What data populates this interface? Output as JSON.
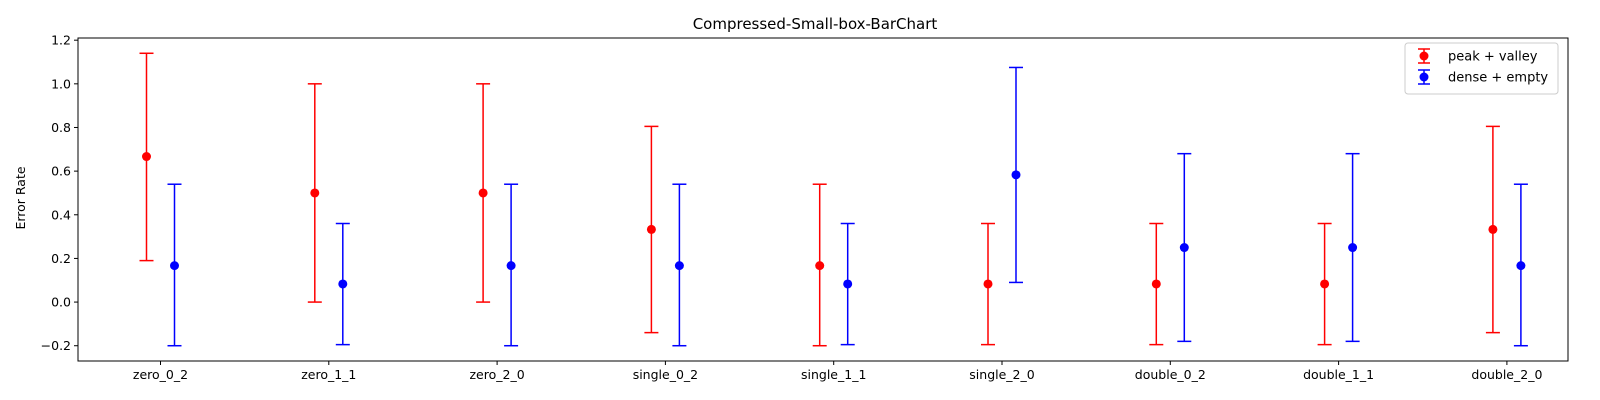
{
  "chart_data": {
    "type": "scatter",
    "title": "Compressed-Small-box-BarChart",
    "xlabel": "",
    "ylabel": "Error Rate",
    "categories": [
      "zero_0_2",
      "zero_1_1",
      "zero_2_0",
      "single_0_2",
      "single_1_1",
      "single_2_0",
      "double_0_2",
      "double_1_1",
      "double_2_0"
    ],
    "ylim": [
      -0.27,
      1.21
    ],
    "yticks": [
      -0.2,
      0.0,
      0.2,
      0.4,
      0.6,
      0.8,
      1.0,
      1.2
    ],
    "ytick_labels": [
      "−0.2",
      "0.0",
      "0.2",
      "0.4",
      "0.6",
      "0.8",
      "1.0",
      "1.2"
    ],
    "grid": false,
    "legend_position": "top-right",
    "series": [
      {
        "name": "peak + valley",
        "color": "#ff0000",
        "values": [
          0.667,
          0.5,
          0.5,
          0.333,
          0.167,
          0.083,
          0.083,
          0.083,
          0.333
        ],
        "err_low": [
          0.19,
          0.0,
          0.0,
          -0.14,
          -0.2,
          -0.195,
          -0.195,
          -0.195,
          -0.14
        ],
        "err_high": [
          1.14,
          1.0,
          1.0,
          0.805,
          0.54,
          0.36,
          0.36,
          0.36,
          0.805
        ]
      },
      {
        "name": "dense + empty",
        "color": "#0000ff",
        "values": [
          0.167,
          0.083,
          0.167,
          0.167,
          0.083,
          0.583,
          0.25,
          0.25,
          0.167
        ],
        "err_low": [
          -0.2,
          -0.195,
          -0.2,
          -0.2,
          -0.195,
          0.09,
          -0.18,
          -0.18,
          -0.2
        ],
        "err_high": [
          0.54,
          0.36,
          0.54,
          0.54,
          0.36,
          1.075,
          0.68,
          0.68,
          0.54
        ]
      }
    ]
  }
}
